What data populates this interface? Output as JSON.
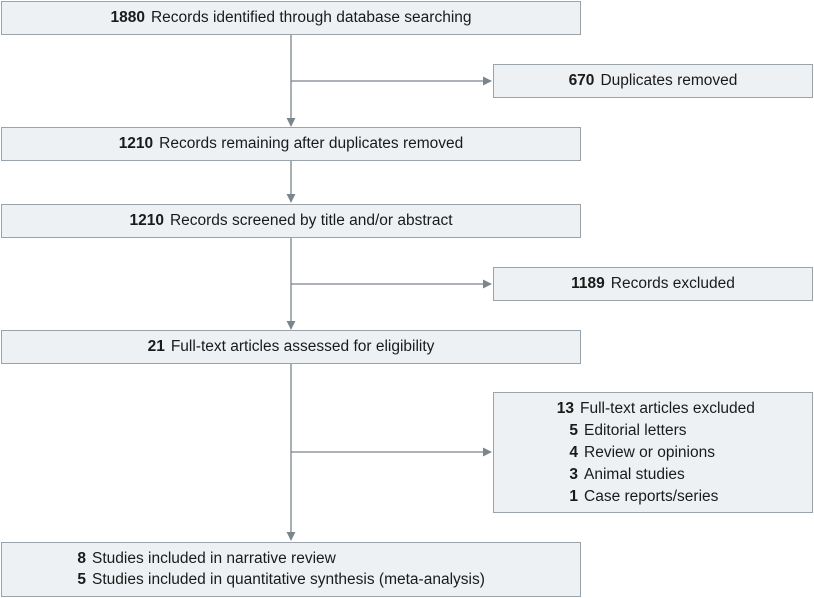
{
  "colors": {
    "box_fill": "#eef1f3",
    "box_border": "#9aa3a9",
    "arrow": "#7b858c"
  },
  "flow": {
    "identified": {
      "count": "1880",
      "text": "Records identified through database searching"
    },
    "duplicates": {
      "count": "670",
      "text": "Duplicates removed"
    },
    "remaining": {
      "count": "1210",
      "text": "Records remaining after duplicates removed"
    },
    "screened": {
      "count": "1210",
      "text": "Records screened by title and/or abstract"
    },
    "excluded": {
      "count": "1189",
      "text": "Records excluded"
    },
    "fulltext": {
      "count": "21",
      "text": "Full-text articles assessed for eligibility"
    },
    "fulltext_excluded": {
      "count": "13",
      "text": "Full-text articles excluded",
      "reasons": [
        {
          "count": "5",
          "text": "Editorial letters"
        },
        {
          "count": "4",
          "text": "Review or opinions"
        },
        {
          "count": "3",
          "text": "Animal studies"
        },
        {
          "count": "1",
          "text": "Case reports/series"
        }
      ]
    },
    "included": [
      {
        "count": "8",
        "text": "Studies included in narrative review"
      },
      {
        "count": "5",
        "text": "Studies included in quantitative synthesis (meta-analysis)"
      }
    ]
  }
}
